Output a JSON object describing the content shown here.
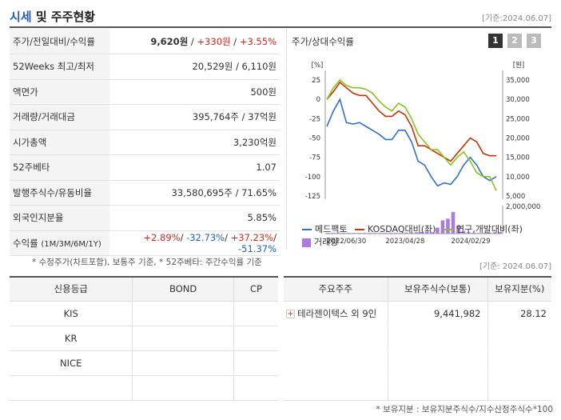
{
  "header": {
    "title_accent": "시세",
    "title_rest": " 및 주주현황",
    "basis": "[기준:2024.06.07]"
  },
  "quote": {
    "rows": [
      {
        "label": "주가/전일대비/수익률"
      },
      {
        "label": "52Weeks 최고/최저",
        "value": "20,529원 / 6,110원"
      },
      {
        "label": "액면가",
        "value": "500원"
      },
      {
        "label": "거래량/거래대금",
        "value": "395,764주 / 37억원"
      },
      {
        "label": "시가총액",
        "value": "3,230억원"
      },
      {
        "label": "52주베타",
        "value": "1.07"
      },
      {
        "label": "발행주식수/유동비율",
        "value": "33,580,695주 / 71.65%"
      },
      {
        "label": "외국인지분율",
        "value": "5.85%"
      }
    ],
    "price": "9,620원",
    "sep": " / ",
    "change": "+330원",
    "change_rate": "+3.55%",
    "return_label": "수익률",
    "return_periods": "(1M/3M/6M/1Y)",
    "returns": [
      "+2.89%",
      "-32.73%",
      "+37.23%",
      "-51.37%"
    ]
  },
  "notes": {
    "left": "* 수정주가(차트포함), 보통주 기준, * 52주베타: 주간수익률 기준",
    "right": "[기준: 2024.06.07]",
    "bottom": "* 보유지분 : 보유지분주식수/지수산정주식수*100"
  },
  "chart_title": "주가/상대수익률",
  "pages": [
    "1",
    "2",
    "3"
  ],
  "colors": {
    "accent": "#2a5db0",
    "red": "#d7261e",
    "blue": "#1f5fc3",
    "stock": "#2f6fd0",
    "kosdaq": "#cc3300",
    "industry": "#8ac21e",
    "volume": "#a97de0"
  },
  "chart_data": {
    "type": "line",
    "left_unit": "[%]",
    "right_unit": "[원]",
    "left_ticks": [
      "25",
      "0",
      "-25",
      "-50",
      "-75",
      "-100",
      "-125"
    ],
    "right_ticks": [
      "35,000",
      "30,000",
      "25,000",
      "20,000",
      "15,000",
      "10,000",
      "5,000"
    ],
    "volume_tick": "2,000,000",
    "x_ticks": [
      "2022/06/30",
      "2023/04/28",
      "2024/02/29"
    ],
    "ylim": [
      -125,
      25
    ],
    "series": [
      {
        "name": "메드팩토",
        "color": "#2f6fd0",
        "values": [
          -35,
          -15,
          0,
          -30,
          -32,
          -30,
          -35,
          -40,
          -45,
          -52,
          -52,
          -40,
          -40,
          -55,
          -80,
          -85,
          -100,
          -112,
          -108,
          -110,
          -100,
          -85,
          -75,
          -85,
          -100,
          -105,
          -100
        ]
      },
      {
        "name": "KOSDAQ대비(좌)",
        "color": "#cc3300",
        "values": [
          0,
          10,
          22,
          15,
          8,
          5,
          5,
          -5,
          -15,
          -22,
          -22,
          -15,
          -20,
          -35,
          -60,
          -60,
          -65,
          -70,
          -75,
          -80,
          -70,
          -60,
          -50,
          -55,
          -70,
          -73,
          -73
        ]
      },
      {
        "name": "연구,개발대비(좌)",
        "color": "#8ac21e",
        "values": [
          0,
          15,
          25,
          18,
          15,
          15,
          13,
          8,
          -2,
          -10,
          -15,
          -5,
          -10,
          -25,
          -45,
          -55,
          -65,
          -65,
          -75,
          -85,
          -75,
          -68,
          -80,
          -95,
          -100,
          -100,
          -118
        ]
      }
    ],
    "volume": {
      "name": "거래량",
      "color": "#a97de0",
      "values": [
        2,
        2,
        2,
        2,
        2,
        2,
        2,
        2,
        2,
        2,
        2,
        2,
        2,
        2,
        2,
        3,
        3,
        4,
        5,
        6,
        4,
        18,
        40,
        45,
        65,
        25,
        8,
        4,
        3,
        2,
        2,
        2,
        4,
        5
      ]
    }
  },
  "credit": {
    "headers": [
      "신용등급",
      "BOND",
      "CP"
    ],
    "rows": [
      [
        "KIS",
        "",
        ""
      ],
      [
        "KR",
        "",
        ""
      ],
      [
        "NICE",
        "",
        ""
      ],
      [
        "",
        "",
        ""
      ]
    ]
  },
  "holders": {
    "headers": [
      "주요주주",
      "보유주식수(보통)",
      "보유지분(%)"
    ],
    "rows": [
      {
        "name": "테라젠이텍스 외 9인",
        "shares": "9,441,982",
        "pct": "28.12"
      },
      {
        "name": "",
        "shares": "",
        "pct": ""
      },
      {
        "name": "",
        "shares": "",
        "pct": ""
      },
      {
        "name": "",
        "shares": "",
        "pct": ""
      }
    ]
  }
}
